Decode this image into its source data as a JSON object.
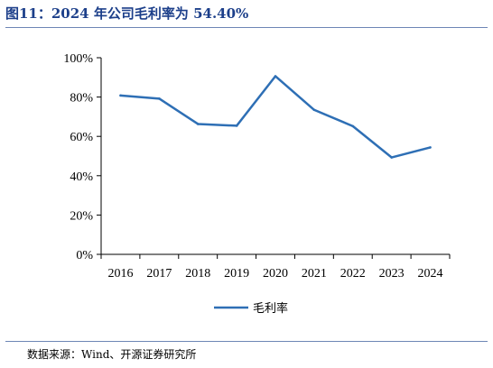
{
  "title": "图11：2024 年公司毛利率为 54.40%",
  "source": "数据来源：Wind、开源证券研究所",
  "chart_data": {
    "type": "line",
    "categories": [
      "2016",
      "2017",
      "2018",
      "2019",
      "2020",
      "2021",
      "2022",
      "2023",
      "2024"
    ],
    "series": [
      {
        "name": "毛利率",
        "values": [
          80.8,
          79.2,
          66.3,
          65.4,
          90.6,
          73.5,
          65.2,
          49.3,
          54.4
        ],
        "color": "#2e6fb5"
      }
    ],
    "ylim": [
      0,
      100
    ],
    "yticks": [
      0,
      20,
      40,
      60,
      80,
      100
    ],
    "ytick_labels": [
      "0%",
      "20%",
      "40%",
      "60%",
      "80%",
      "100%"
    ],
    "grid": false,
    "legend": "bottom-center"
  }
}
